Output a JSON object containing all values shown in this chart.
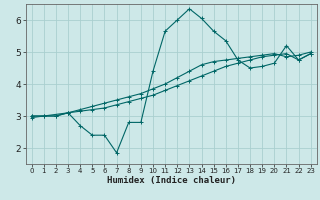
{
  "xlabel": "Humidex (Indice chaleur)",
  "bg_color": "#cde8e8",
  "grid_color": "#aacfcf",
  "line_color": "#006666",
  "xlim": [
    -0.5,
    23.5
  ],
  "ylim": [
    1.5,
    6.5
  ],
  "xticks": [
    0,
    1,
    2,
    3,
    4,
    5,
    6,
    7,
    8,
    9,
    10,
    11,
    12,
    13,
    14,
    15,
    16,
    17,
    18,
    19,
    20,
    21,
    22,
    23
  ],
  "yticks": [
    2,
    3,
    4,
    5,
    6
  ],
  "series": [
    {
      "x": [
        0,
        1,
        2,
        3,
        4,
        5,
        6,
        7,
        8,
        9,
        10,
        11,
        12,
        13,
        14,
        15,
        16,
        17,
        18,
        19,
        20,
        21,
        22,
        23
      ],
      "y": [
        3.0,
        3.0,
        3.0,
        3.1,
        3.15,
        3.2,
        3.25,
        3.35,
        3.45,
        3.55,
        3.65,
        3.8,
        3.95,
        4.1,
        4.25,
        4.4,
        4.55,
        4.65,
        4.75,
        4.85,
        4.9,
        4.95,
        4.75,
        4.95
      ]
    },
    {
      "x": [
        0,
        1,
        2,
        3,
        4,
        5,
        6,
        7,
        8,
        9,
        10,
        11,
        12,
        13,
        14,
        15,
        16,
        17,
        18,
        19,
        20,
        21,
        22,
        23
      ],
      "y": [
        3.0,
        3.0,
        3.0,
        3.1,
        3.2,
        3.3,
        3.4,
        3.5,
        3.6,
        3.7,
        3.85,
        4.0,
        4.2,
        4.4,
        4.6,
        4.7,
        4.75,
        4.8,
        4.85,
        4.9,
        4.95,
        4.85,
        4.9,
        5.0
      ]
    },
    {
      "x": [
        0,
        3,
        4,
        5,
        6,
        7,
        8,
        9,
        10,
        11,
        12,
        13,
        14,
        15,
        16,
        17,
        18,
        19,
        20,
        21,
        22,
        23
      ],
      "y": [
        2.95,
        3.1,
        2.7,
        2.4,
        2.4,
        1.85,
        2.8,
        2.8,
        4.4,
        5.65,
        6.0,
        6.35,
        6.05,
        5.65,
        5.35,
        4.75,
        4.5,
        4.55,
        4.65,
        5.2,
        4.75,
        4.95
      ]
    }
  ]
}
